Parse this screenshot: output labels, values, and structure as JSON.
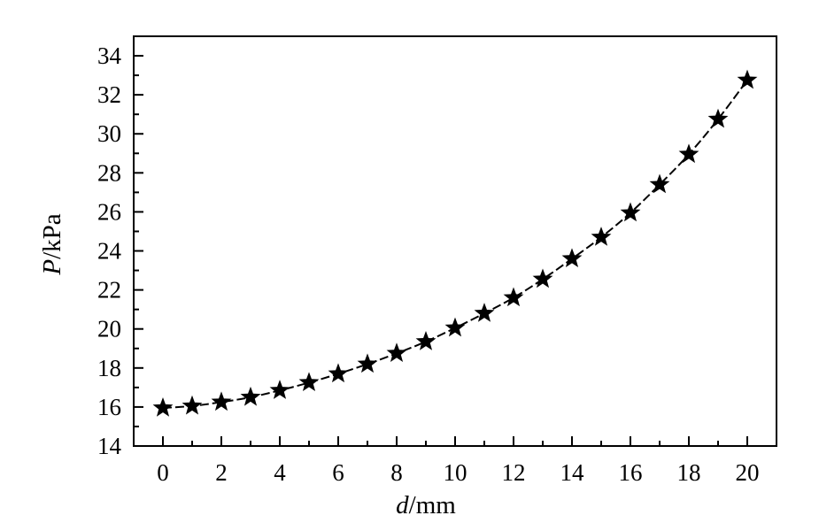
{
  "chart_data": {
    "type": "line",
    "title": "",
    "xlabel_var": "d",
    "xlabel_unit": "/mm",
    "ylabel_var": "P",
    "ylabel_unit": "/kPa",
    "xlim": [
      -1,
      21
    ],
    "ylim": [
      14,
      35
    ],
    "xticks": [
      0,
      2,
      4,
      6,
      8,
      10,
      12,
      14,
      16,
      18,
      20
    ],
    "yticks": [
      14,
      16,
      18,
      20,
      22,
      24,
      26,
      28,
      30,
      32,
      34
    ],
    "x_minor_step": 1,
    "y_minor_step": 1,
    "grid": false,
    "marker": "star",
    "line_style": "dashed",
    "series": [
      {
        "x": [
          0,
          1,
          2,
          3,
          4,
          5,
          6,
          7,
          8,
          9,
          10,
          11,
          12,
          13,
          14,
          15,
          16,
          17,
          18,
          19,
          20
        ],
        "y": [
          15.95,
          16.05,
          16.25,
          16.5,
          16.85,
          17.25,
          17.7,
          18.2,
          18.75,
          19.35,
          20.05,
          20.8,
          21.6,
          22.55,
          23.6,
          24.7,
          25.95,
          27.4,
          28.95,
          30.75,
          32.75
        ]
      }
    ]
  }
}
